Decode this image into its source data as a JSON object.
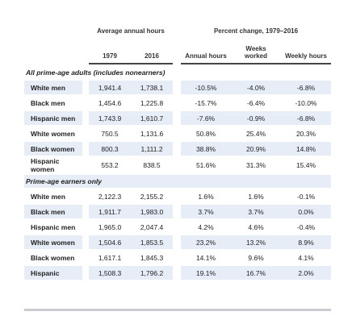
{
  "header": {
    "group1": "Average annual hours",
    "group2": "Percent change, 1979–2016",
    "columns": [
      "1979",
      "2016",
      "Annual hours",
      "Weeks worked",
      "Weekly hours"
    ]
  },
  "sections": [
    {
      "title": "All prime-age adults (includes nonearners)",
      "rows": [
        {
          "label": "White men",
          "cells": [
            "1,941.4",
            "1,738.1",
            "-10.5%",
            "-4.0%",
            "-6.8%"
          ]
        },
        {
          "label": "Black men",
          "cells": [
            "1,454.6",
            "1,225.8",
            "-15.7%",
            "-6.4%",
            "-10.0%"
          ]
        },
        {
          "label": "Hispanic men",
          "cells": [
            "1,743.9",
            "1,610.7",
            "-7.6%",
            "-0.9%",
            "-6.8%"
          ]
        },
        {
          "label": "White women",
          "cells": [
            "750.5",
            "1,131.6",
            "50.8%",
            "25.4%",
            "20.3%"
          ]
        },
        {
          "label": "Black women",
          "cells": [
            "800.3",
            "1,111.2",
            "38.8%",
            "20.9%",
            "14.8%"
          ]
        },
        {
          "label": "Hispanic women",
          "cells": [
            "553.2",
            "838.5",
            "51.6%",
            "31.3%",
            "15.4%"
          ]
        }
      ]
    },
    {
      "title": "Prime-age earners only",
      "rows": [
        {
          "label": "White men",
          "cells": [
            "2,122.3",
            "2,155.2",
            "1.6%",
            "1.6%",
            "-0.1%"
          ]
        },
        {
          "label": "Black men",
          "cells": [
            "1,911.7",
            "1,983.0",
            "3.7%",
            "3.7%",
            "0.0%"
          ]
        },
        {
          "label": "Hispanic men",
          "cells": [
            "1,965.0",
            "2,047.4",
            "4.2%",
            "4.6%",
            "-0.4%"
          ]
        },
        {
          "label": "White women",
          "cells": [
            "1,504.6",
            "1,853.5",
            "23.2%",
            "13.2%",
            "8.9%"
          ]
        },
        {
          "label": "Black women",
          "cells": [
            "1,617.1",
            "1,845.3",
            "14.1%",
            "9.6%",
            "4.1%"
          ]
        },
        {
          "label": "Hispanic",
          "cells": [
            "1,508.3",
            "1,796.2",
            "19.1%",
            "16.7%",
            "2.0%"
          ]
        }
      ]
    }
  ]
}
